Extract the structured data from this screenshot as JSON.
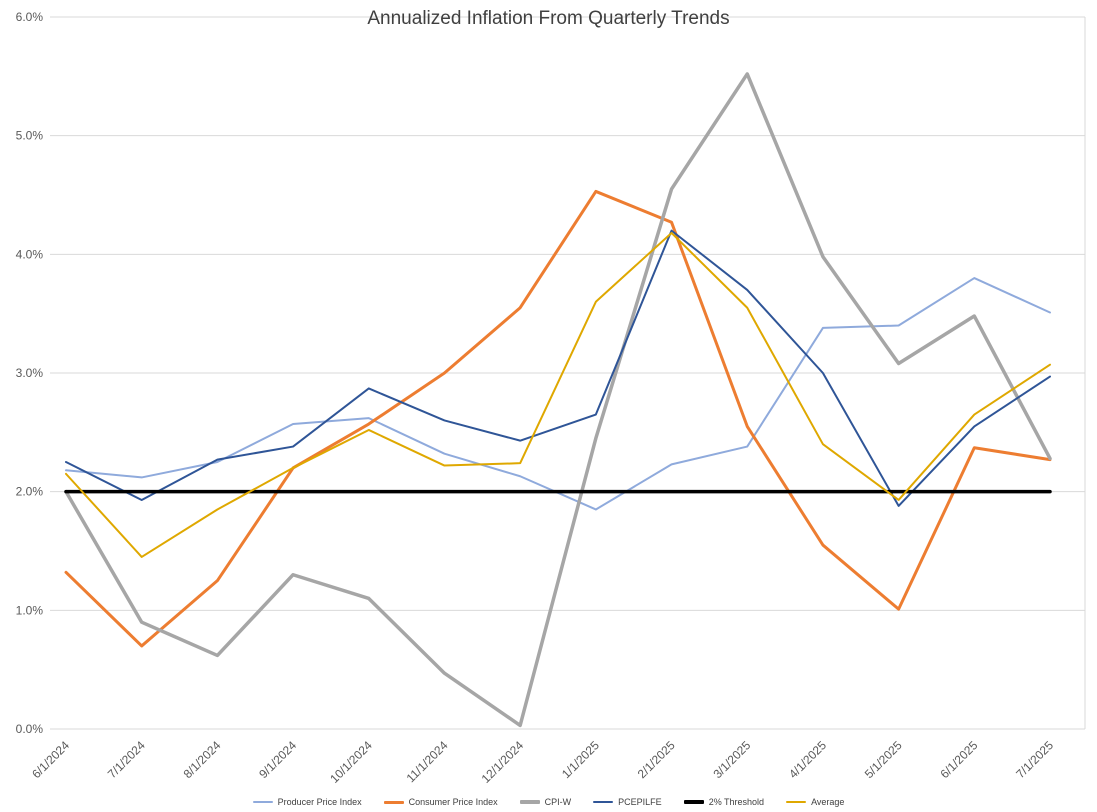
{
  "chart_data": {
    "type": "line",
    "title": "Annualized Inflation From Quarterly Trends",
    "categories": [
      "6/1/2024",
      "7/1/2024",
      "8/1/2024",
      "9/1/2024",
      "10/1/2024",
      "11/1/2024",
      "12/1/2024",
      "1/1/2025",
      "2/1/2025",
      "3/1/2025",
      "4/1/2025",
      "5/1/2025",
      "6/1/2025",
      "7/1/2025"
    ],
    "series": [
      {
        "name": "Producer Price Index",
        "color": "#8FAADC",
        "width": 2,
        "values": [
          2.18,
          2.12,
          2.25,
          2.57,
          2.62,
          2.32,
          2.13,
          1.85,
          2.23,
          2.38,
          3.38,
          3.4,
          3.8,
          3.51
        ]
      },
      {
        "name": "Consumer Price Index",
        "color": "#ED7D31",
        "width": 3,
        "values": [
          1.32,
          0.7,
          1.25,
          2.2,
          2.57,
          3.0,
          3.55,
          4.53,
          4.27,
          2.55,
          1.55,
          1.01,
          2.37,
          2.27
        ]
      },
      {
        "name": "CPI-W",
        "color": "#A6A6A6",
        "width": 3.5,
        "values": [
          2.0,
          0.9,
          0.62,
          1.3,
          1.1,
          0.47,
          0.03,
          2.45,
          4.55,
          5.52,
          3.98,
          3.08,
          3.48,
          2.28
        ]
      },
      {
        "name": "PCEPILFE",
        "color": "#2F5597",
        "width": 2,
        "values": [
          2.25,
          1.93,
          2.27,
          2.38,
          2.87,
          2.6,
          2.43,
          2.65,
          4.2,
          3.7,
          3.0,
          1.88,
          2.55,
          2.97
        ]
      },
      {
        "name": "2% Threshold",
        "color": "#000000",
        "width": 3.5,
        "values": [
          2.0,
          2.0,
          2.0,
          2.0,
          2.0,
          2.0,
          2.0,
          2.0,
          2.0,
          2.0,
          2.0,
          2.0,
          2.0,
          2.0
        ]
      },
      {
        "name": "Average",
        "color": "#DFA800",
        "width": 2,
        "values": [
          2.15,
          1.45,
          1.85,
          2.2,
          2.52,
          2.22,
          2.24,
          3.6,
          4.18,
          3.55,
          2.4,
          1.93,
          2.65,
          3.07
        ]
      }
    ],
    "y_axis": {
      "min": 0,
      "max": 6,
      "tick_step": 1,
      "labels": [
        "0.0%",
        "1.0%",
        "2.0%",
        "3.0%",
        "4.0%",
        "5.0%",
        "6.0%"
      ]
    },
    "xlabel": "",
    "ylabel": "",
    "grid": "horizontal",
    "legend_position": "bottom"
  },
  "colors": {
    "gridline": "#D9D9D9",
    "axis_text": "#595959",
    "title_text": "#404040"
  }
}
